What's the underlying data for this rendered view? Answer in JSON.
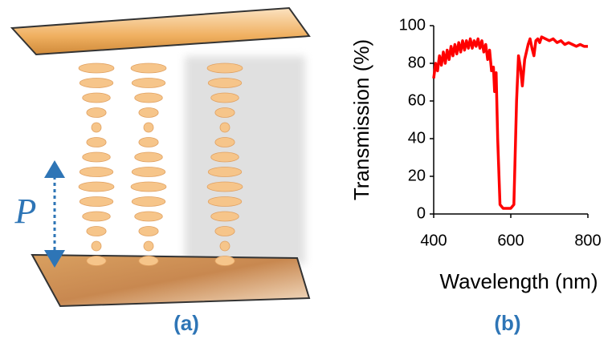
{
  "panel_a": {
    "label": "(a)",
    "pitch_label": "P"
  },
  "panel_b_label": "(b)",
  "chart_data": {
    "type": "line",
    "x_label": "Wavelength (nm)",
    "y_label": "Transmission (%)",
    "xlim": [
      400,
      800
    ],
    "ylim": [
      0,
      100
    ],
    "xticks": [
      400,
      600,
      800
    ],
    "yticks": [
      0,
      20,
      40,
      60,
      80,
      100
    ],
    "grid": false,
    "series": [
      {
        "color": "#ff0000",
        "x": [
          400,
          405,
          410,
          415,
          420,
          425,
          430,
          435,
          440,
          445,
          450,
          455,
          460,
          465,
          470,
          475,
          480,
          485,
          490,
          495,
          500,
          505,
          510,
          515,
          520,
          525,
          530,
          535,
          540,
          545,
          550,
          555,
          558,
          562,
          566,
          572,
          580,
          590,
          600,
          608,
          615,
          620,
          625,
          630,
          636,
          645,
          650,
          655,
          660,
          665,
          670,
          675,
          680,
          690,
          700,
          710,
          720,
          730,
          740,
          750,
          760,
          770,
          780,
          790,
          800
        ],
        "values": [
          72,
          80,
          76,
          84,
          79,
          86,
          80,
          87,
          82,
          89,
          84,
          90,
          85,
          91,
          86,
          92,
          87,
          92,
          88,
          93,
          88,
          92,
          89,
          93,
          88,
          92,
          86,
          90,
          82,
          87,
          76,
          78,
          65,
          75,
          40,
          5,
          3,
          3,
          3,
          5,
          60,
          84,
          78,
          68,
          82,
          90,
          93,
          88,
          84,
          92,
          93,
          91,
          94,
          93,
          92,
          93,
          91,
          92,
          90,
          91,
          90,
          89,
          90,
          89,
          89
        ]
      }
    ]
  }
}
